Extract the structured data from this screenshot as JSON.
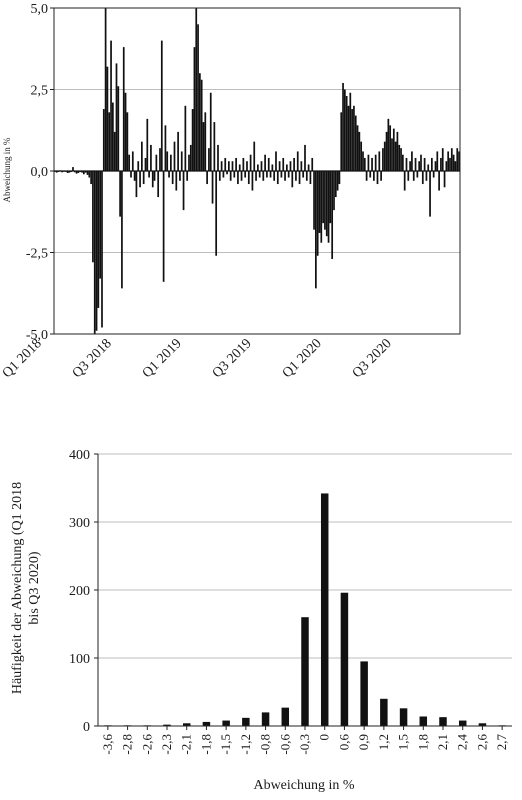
{
  "chart_data": [
    {
      "type": "bar",
      "ylabel": "Abweichung in %",
      "ylim": [
        -5.0,
        5.0
      ],
      "yticks": [
        "5,0",
        "2,5",
        "0,0",
        "-2,5",
        "-5,0"
      ],
      "ytick_values": [
        5.0,
        2.5,
        0.0,
        -2.5,
        -5.0
      ],
      "xticks": [
        "Q1 2018",
        "Q3 2018",
        "Q1 2019",
        "Q3 2019",
        "Q1 2020",
        "Q3 2020"
      ],
      "grid": "horizontal",
      "series": [
        {
          "values": [
            0.0,
            -0.05,
            -0.03,
            0.02,
            -0.04,
            -0.02,
            0.0,
            -0.06,
            -0.05,
            -0.03,
            0.12,
            -0.04,
            -0.08,
            -0.06,
            -0.03,
            -0.05,
            -0.1,
            -0.05,
            -0.12,
            -0.2,
            -0.4,
            -2.8,
            -5.0,
            -4.9,
            -4.2,
            -3.3,
            -4.8,
            1.9,
            5.0,
            3.2,
            1.8,
            4.0,
            2.1,
            1.2,
            3.3,
            2.6,
            -1.4,
            -3.6,
            3.8,
            2.4,
            1.8,
            0.5,
            -0.2,
            0.6,
            -0.3,
            -0.8,
            0.3,
            -0.5,
            0.9,
            -0.4,
            0.4,
            1.6,
            -0.2,
            0.8,
            -0.5,
            -0.3,
            0.5,
            -0.8,
            0.7,
            4.0,
            -3.4,
            1.4,
            0.6,
            -0.2,
            0.5,
            -0.4,
            0.9,
            -0.6,
            1.2,
            -0.3,
            0.6,
            -1.2,
            2.0,
            -0.3,
            0.5,
            0.8,
            1.9,
            3.8,
            5.0,
            4.5,
            3.0,
            2.8,
            1.5,
            1.8,
            -0.4,
            0.7,
            2.4,
            -1.0,
            1.5,
            -2.6,
            0.8,
            -0.3,
            0.3,
            -0.2,
            0.4,
            -0.1,
            0.3,
            -0.3,
            0.3,
            -0.2,
            0.4,
            -0.4,
            0.2,
            -0.3,
            0.4,
            -0.2,
            0.3,
            -0.4,
            0.5,
            -0.6,
            0.9,
            -0.3,
            0.2,
            -0.2,
            0.3,
            -0.3,
            0.5,
            -0.2,
            0.4,
            -0.2,
            0.2,
            -0.3,
            0.6,
            -0.4,
            0.3,
            -0.2,
            0.4,
            -0.3,
            0.2,
            -0.2,
            0.3,
            -0.5,
            0.4,
            -0.3,
            0.6,
            -0.4,
            0.3,
            -0.2,
            0.8,
            -0.3,
            0.2,
            -0.4,
            0.4,
            -1.8,
            -3.6,
            -2.6,
            -1.9,
            -2.2,
            -1.6,
            -1.8,
            -2.0,
            -2.2,
            -1.6,
            -2.7,
            -1.2,
            -0.8,
            -0.6,
            -0.4,
            1.8,
            2.7,
            2.5,
            2.3,
            2.0,
            2.4,
            1.9,
            2.0,
            1.7,
            1.4,
            1.2,
            0.9,
            0.6,
            0.4,
            -0.3,
            0.5,
            -0.2,
            0.4,
            -0.3,
            0.5,
            -0.4,
            0.6,
            -0.3,
            0.7,
            0.9,
            1.2,
            1.6,
            1.4,
            1.0,
            1.3,
            0.9,
            1.2,
            0.8,
            0.7,
            0.5,
            -0.6,
            0.4,
            -0.3,
            0.3,
            0.6,
            -0.3,
            0.4,
            -0.2,
            0.3,
            0.5,
            -0.4,
            0.4,
            -0.3,
            0.2,
            -1.4,
            0.4,
            -0.2,
            0.3,
            0.6,
            -0.6,
            0.4,
            0.7,
            -0.5,
            0.3,
            0.6,
            0.4,
            0.7,
            0.5,
            0.3,
            0.7,
            0.6
          ]
        }
      ]
    },
    {
      "type": "bar",
      "ylabel": "Häufigkeit der Abweichung (Q1 2018 bis Q3 2020)",
      "xlabel": "Abweichung in %",
      "ylim": [
        0,
        400
      ],
      "yticks": [
        "400",
        "300",
        "200",
        "100",
        "0"
      ],
      "ytick_values": [
        400,
        300,
        200,
        100,
        0
      ],
      "grid": "horizontal",
      "categories": [
        "-3,6",
        "-2,8",
        "-2,6",
        "-2,3",
        "-2,1",
        "-1,8",
        "-1,5",
        "-1,2",
        "-0,8",
        "-0,6",
        "-0,3",
        "0",
        "0,6",
        "0,9",
        "1,2",
        "1,5",
        "1,8",
        "2,1",
        "2,4",
        "2,6",
        "2,7"
      ],
      "values": [
        1,
        1,
        1,
        2,
        4,
        6,
        8,
        12,
        20,
        27,
        160,
        342,
        196,
        95,
        40,
        26,
        14,
        13,
        8,
        4,
        1
      ]
    }
  ]
}
